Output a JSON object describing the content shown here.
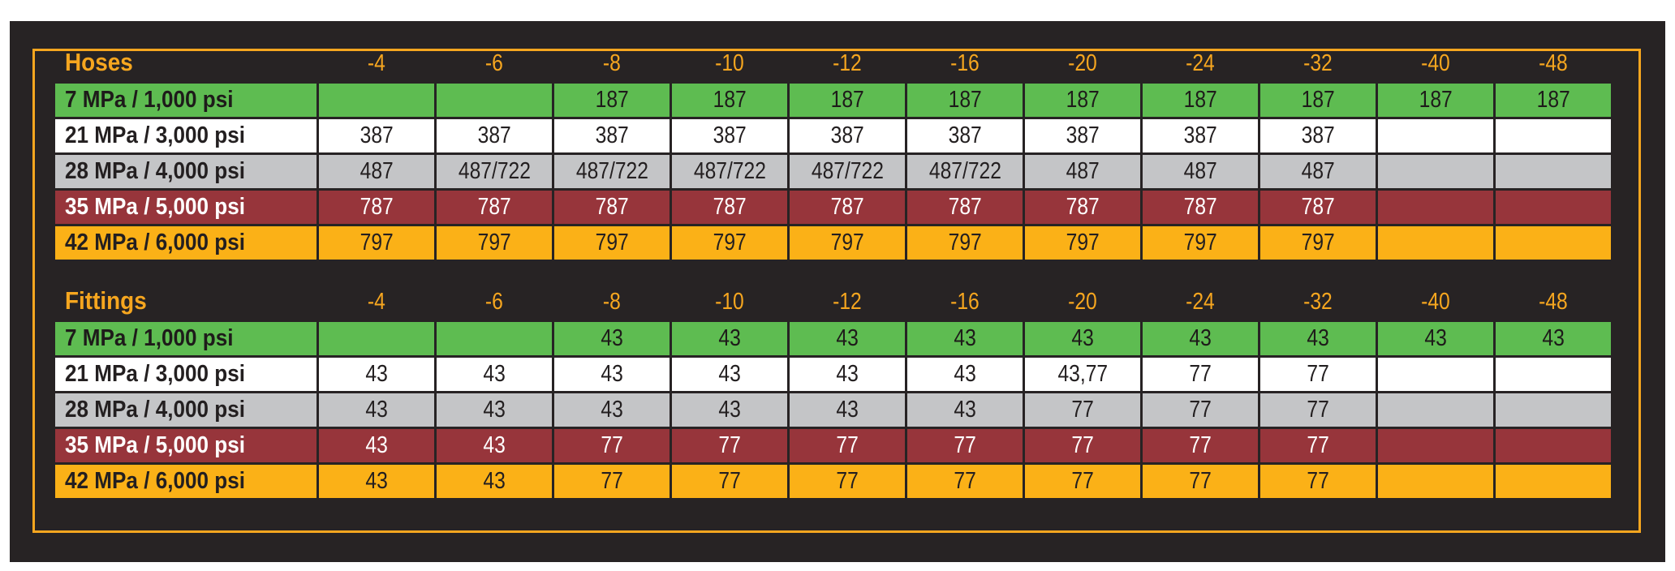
{
  "palette": {
    "page_background": "#FFFFFF",
    "panel_background": "#272324",
    "frame_gold": "#F6A61F",
    "header_text_gold": "#F6A61F",
    "row_green": "#5EBC51",
    "row_white": "#FFFFFF",
    "row_gray": "#C4C5C7",
    "row_maroon": "#97353B",
    "row_orange": "#FBB117",
    "dark_text": "#231F20",
    "light_text": "#FFFFFF"
  },
  "chart_data": [
    {
      "type": "table",
      "title": "Hoses",
      "columns": [
        "-4",
        "-6",
        "-8",
        "-10",
        "-12",
        "-16",
        "-20",
        "-24",
        "-32",
        "-40",
        "-48"
      ],
      "rows": [
        {
          "label": "7 MPa / 1,000 psi",
          "style": "green",
          "values": [
            "",
            "",
            "187",
            "187",
            "187",
            "187",
            "187",
            "187",
            "187",
            "187",
            "187"
          ]
        },
        {
          "label": "21 MPa / 3,000 psi",
          "style": "white",
          "values": [
            "387",
            "387",
            "387",
            "387",
            "387",
            "387",
            "387",
            "387",
            "387",
            "",
            ""
          ]
        },
        {
          "label": "28 MPa / 4,000 psi",
          "style": "gray",
          "values": [
            "487",
            "487/722",
            "487/722",
            "487/722",
            "487/722",
            "487/722",
            "487",
            "487",
            "487",
            "",
            ""
          ]
        },
        {
          "label": "35 MPa / 5,000 psi",
          "style": "maroon",
          "values": [
            "787",
            "787",
            "787",
            "787",
            "787",
            "787",
            "787",
            "787",
            "787",
            "",
            ""
          ]
        },
        {
          "label": "42 MPa / 6,000 psi",
          "style": "orange",
          "values": [
            "797",
            "797",
            "797",
            "797",
            "797",
            "797",
            "797",
            "797",
            "797",
            "",
            ""
          ]
        }
      ]
    },
    {
      "type": "table",
      "title": "Fittings",
      "columns": [
        "-4",
        "-6",
        "-8",
        "-10",
        "-12",
        "-16",
        "-20",
        "-24",
        "-32",
        "-40",
        "-48"
      ],
      "rows": [
        {
          "label": "7 MPa / 1,000 psi",
          "style": "green",
          "values": [
            "",
            "",
            "43",
            "43",
            "43",
            "43",
            "43",
            "43",
            "43",
            "43",
            "43"
          ]
        },
        {
          "label": "21 MPa / 3,000 psi",
          "style": "white",
          "values": [
            "43",
            "43",
            "43",
            "43",
            "43",
            "43",
            "43,77",
            "77",
            "77",
            "",
            ""
          ]
        },
        {
          "label": "28 MPa / 4,000 psi",
          "style": "gray",
          "values": [
            "43",
            "43",
            "43",
            "43",
            "43",
            "43",
            "77",
            "77",
            "77",
            "",
            ""
          ]
        },
        {
          "label": "35 MPa / 5,000 psi",
          "style": "maroon",
          "values": [
            "43",
            "43",
            "77",
            "77",
            "77",
            "77",
            "77",
            "77",
            "77",
            "",
            ""
          ]
        },
        {
          "label": "42 MPa / 6,000 psi",
          "style": "orange",
          "values": [
            "43",
            "43",
            "77",
            "77",
            "77",
            "77",
            "77",
            "77",
            "77",
            "",
            ""
          ]
        }
      ]
    }
  ]
}
